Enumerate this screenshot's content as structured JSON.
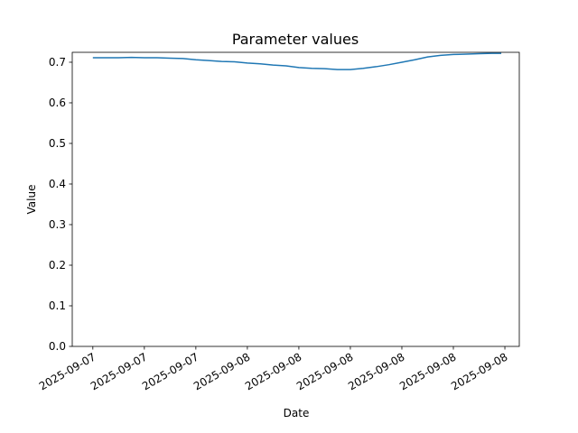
{
  "chart_data": {
    "type": "line",
    "title": "Parameter values",
    "x_label": "Date",
    "y_label": "Value",
    "x": [
      0,
      0.25,
      0.5,
      0.75,
      1,
      1.25,
      1.5,
      1.75,
      2,
      2.25,
      2.5,
      2.75,
      3,
      3.25,
      3.5,
      3.75,
      4,
      4.25,
      4.5,
      4.75,
      5,
      5.25,
      5.5,
      5.75,
      6,
      6.25,
      6.5,
      6.75,
      7,
      7.25,
      7.5,
      7.75,
      7.93
    ],
    "series": [
      {
        "name": "Value",
        "color": "#1f77b4",
        "values": [
          0.711,
          0.711,
          0.711,
          0.712,
          0.711,
          0.711,
          0.71,
          0.709,
          0.706,
          0.704,
          0.702,
          0.701,
          0.698,
          0.696,
          0.693,
          0.691,
          0.687,
          0.685,
          0.684,
          0.682,
          0.682,
          0.685,
          0.689,
          0.694,
          0.7,
          0.706,
          0.713,
          0.717,
          0.719,
          0.72,
          0.721,
          0.722,
          0.722
        ]
      }
    ],
    "xlim": [
      -0.4,
      8.28
    ],
    "xticks": [
      {
        "value": 0,
        "label": "2025-09-07"
      },
      {
        "value": 1,
        "label": "2025-09-07"
      },
      {
        "value": 2,
        "label": "2025-09-07"
      },
      {
        "value": 3,
        "label": "2025-09-08"
      },
      {
        "value": 4,
        "label": "2025-09-08"
      },
      {
        "value": 5,
        "label": "2025-09-08"
      },
      {
        "value": 6,
        "label": "2025-09-08"
      },
      {
        "value": 7,
        "label": "2025-09-08"
      },
      {
        "value": 8,
        "label": "2025-09-08"
      }
    ],
    "ylim": [
      0,
      0.7244
    ],
    "yticks": [
      {
        "value": 0,
        "label": "0.0"
      },
      0.1,
      0.2,
      0.3,
      0.4,
      0.5,
      0.6,
      0.7
    ]
  }
}
